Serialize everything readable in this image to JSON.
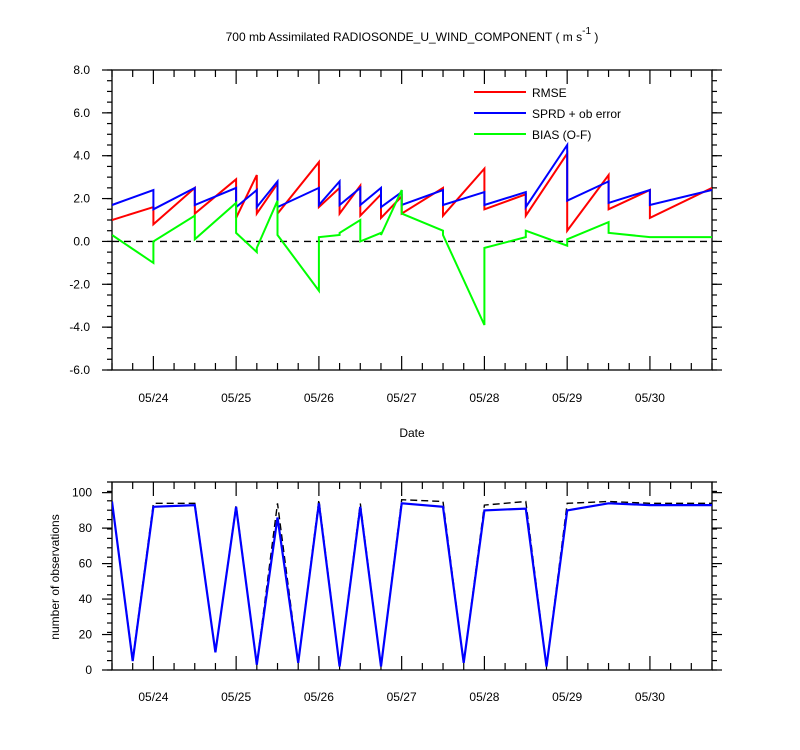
{
  "chart_data": [
    {
      "type": "line",
      "title": "700 mb Assimilated RADIOSONDE_U_WIND_COMPONENT ( m s",
      "title_superscript": "-1",
      "title_suffix": " )",
      "xlabel": "Date",
      "ylabel": "",
      "xlim": [
        "05/23 12Z",
        "05/30 18Z"
      ],
      "ylim": [
        -6,
        8
      ],
      "y_ticks": [
        "-6.0",
        "-4.0",
        "-2.0",
        "0.0",
        "2.0",
        "4.0",
        "6.0",
        "8.0"
      ],
      "x_ticks": [
        "05/24",
        "05/25",
        "05/26",
        "05/27",
        "05/28",
        "05/29",
        "05/30"
      ],
      "reference_line": {
        "y": 0,
        "style": "dashed",
        "color": "#000000"
      },
      "legend": {
        "placement": "top-right"
      },
      "series": [
        {
          "name": "RMSE",
          "color": "#ff0000",
          "x": [
            "05/23 12Z",
            "05/24 00Z",
            "05/24 00Z",
            "05/24 12Z",
            "05/24 12Z",
            "05/25 00Z",
            "05/25 00Z",
            "05/25 06Z",
            "05/25 06Z",
            "05/25 12Z",
            "05/25 12Z",
            "05/26 00Z",
            "05/26 00Z",
            "05/26 06Z",
            "05/26 06Z",
            "05/26 12Z",
            "05/26 12Z",
            "05/26 18Z",
            "05/26 18Z",
            "05/27 00Z",
            "05/27 00Z",
            "05/27 12Z",
            "05/27 12Z",
            "05/28 00Z",
            "05/28 00Z",
            "05/28 12Z",
            "05/28 12Z",
            "05/29 00Z",
            "05/29 00Z",
            "05/29 12Z",
            "05/29 12Z",
            "05/30 00Z",
            "05/30 00Z",
            "05/30 18Z"
          ],
          "y": [
            1.0,
            1.6,
            0.8,
            2.5,
            1.3,
            2.9,
            1.1,
            3.1,
            1.3,
            2.7,
            1.3,
            3.7,
            1.6,
            2.5,
            1.3,
            2.6,
            1.2,
            2.2,
            1.1,
            2.1,
            1.3,
            2.5,
            1.2,
            3.4,
            1.5,
            2.2,
            1.2,
            4.1,
            0.5,
            3.1,
            1.5,
            2.4,
            1.1,
            2.5
          ]
        },
        {
          "name": "SPRD + ob error",
          "color": "#0000ff",
          "x": [
            "05/23 12Z",
            "05/24 00Z",
            "05/24 00Z",
            "05/24 12Z",
            "05/24 12Z",
            "05/25 00Z",
            "05/25 00Z",
            "05/25 06Z",
            "05/25 06Z",
            "05/25 12Z",
            "05/25 12Z",
            "05/26 00Z",
            "05/26 00Z",
            "05/26 06Z",
            "05/26 06Z",
            "05/26 12Z",
            "05/26 12Z",
            "05/26 18Z",
            "05/26 18Z",
            "05/27 00Z",
            "05/27 00Z",
            "05/27 12Z",
            "05/27 12Z",
            "05/28 00Z",
            "05/28 00Z",
            "05/28 12Z",
            "05/28 12Z",
            "05/29 00Z",
            "05/29 00Z",
            "05/29 12Z",
            "05/29 12Z",
            "05/30 00Z",
            "05/30 00Z",
            "05/30 18Z"
          ],
          "y": [
            1.7,
            2.4,
            1.5,
            2.5,
            1.7,
            2.5,
            1.6,
            2.4,
            1.6,
            2.8,
            1.6,
            2.5,
            1.7,
            2.8,
            1.7,
            2.5,
            1.7,
            2.5,
            1.6,
            2.3,
            1.7,
            2.4,
            1.7,
            2.3,
            1.7,
            2.3,
            1.6,
            4.5,
            1.9,
            2.8,
            1.8,
            2.4,
            1.7,
            2.4
          ]
        },
        {
          "name": "BIAS (O-F)",
          "color": "#00ff00",
          "x": [
            "05/23 12Z",
            "05/24 00Z",
            "05/24 00Z",
            "05/24 12Z",
            "05/24 12Z",
            "05/25 00Z",
            "05/25 00Z",
            "05/25 06Z",
            "05/25 06Z",
            "05/25 12Z",
            "05/25 12Z",
            "05/26 00Z",
            "05/26 00Z",
            "05/26 06Z",
            "05/26 06Z",
            "05/26 12Z",
            "05/26 12Z",
            "05/26 18Z",
            "05/26 18Z",
            "05/27 00Z",
            "05/27 00Z",
            "05/27 12Z",
            "05/27 12Z",
            "05/28 00Z",
            "05/28 00Z",
            "05/28 12Z",
            "05/28 12Z",
            "05/29 00Z",
            "05/29 00Z",
            "05/29 12Z",
            "05/29 12Z",
            "05/30 00Z",
            "05/30 00Z",
            "05/30 18Z"
          ],
          "y": [
            0.3,
            -1.0,
            0.0,
            1.2,
            0.1,
            1.8,
            0.4,
            -0.5,
            -0.3,
            1.9,
            0.3,
            -2.3,
            0.2,
            0.3,
            0.4,
            1.0,
            0.0,
            0.4,
            0.3,
            2.4,
            1.3,
            0.5,
            0.3,
            -3.9,
            -0.3,
            0.2,
            0.5,
            -0.2,
            0.1,
            0.9,
            0.4,
            0.2,
            0.2,
            0.2
          ]
        }
      ]
    },
    {
      "type": "line",
      "title": "",
      "xlabel": "",
      "ylabel": "number of observations",
      "xlim": [
        "05/23 12Z",
        "05/30 18Z"
      ],
      "ylim": [
        0,
        106
      ],
      "y_ticks": [
        "0",
        "20",
        "40",
        "60",
        "80",
        "100"
      ],
      "x_ticks": [
        "05/24",
        "05/25",
        "05/26",
        "05/27",
        "05/28",
        "05/29",
        "05/30"
      ],
      "series": [
        {
          "color": "#000000",
          "style": "dashed",
          "x": [
            "05/23 12Z",
            "05/23 18Z",
            "05/24 00Z",
            "05/24 12Z",
            "05/24 18Z",
            "05/25 00Z",
            "05/25 06Z",
            "05/25 12Z",
            "05/25 18Z",
            "05/26 00Z",
            "05/26 06Z",
            "05/26 12Z",
            "05/26 18Z",
            "05/27 00Z",
            "05/27 12Z",
            "05/27 18Z",
            "05/28 00Z",
            "05/28 12Z",
            "05/28 18Z",
            "05/29 00Z",
            "05/29 12Z",
            "05/30 00Z",
            "05/30 18Z"
          ],
          "y": [
            95,
            6,
            94,
            94,
            10,
            93,
            3,
            94,
            4,
            96,
            2,
            94,
            2,
            96,
            95,
            4,
            93,
            95,
            2,
            94,
            95,
            94,
            94
          ]
        },
        {
          "color": "#0000ff",
          "style": "solid",
          "x": [
            "05/23 12Z",
            "05/23 18Z",
            "05/24 00Z",
            "05/24 12Z",
            "05/24 18Z",
            "05/25 00Z",
            "05/25 06Z",
            "05/25 12Z",
            "05/25 18Z",
            "05/26 00Z",
            "05/26 06Z",
            "05/26 12Z",
            "05/26 18Z",
            "05/27 00Z",
            "05/27 12Z",
            "05/27 18Z",
            "05/28 00Z",
            "05/28 12Z",
            "05/28 18Z",
            "05/29 00Z",
            "05/29 12Z",
            "05/30 00Z",
            "05/30 18Z"
          ],
          "y": [
            95,
            5,
            92,
            93,
            10,
            92,
            3,
            86,
            4,
            94,
            2,
            92,
            2,
            94,
            92,
            4,
            90,
            91,
            2,
            90,
            94,
            93,
            93
          ]
        }
      ]
    }
  ]
}
